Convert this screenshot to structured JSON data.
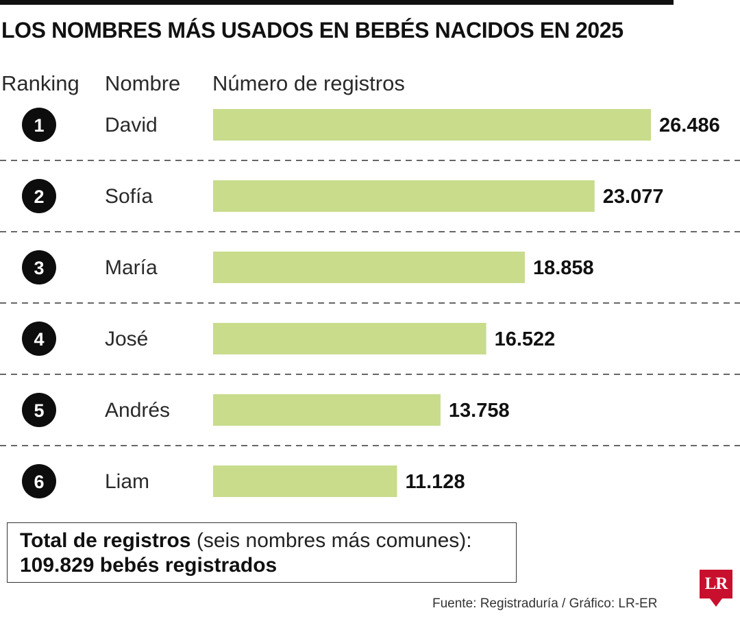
{
  "title": "LOS NOMBRES MÁS USADOS EN BEBÉS NACIDOS EN 2025",
  "columns": {
    "ranking": "Ranking",
    "nombre": "Nombre",
    "registros": "Número de registros"
  },
  "chart_data": {
    "type": "bar",
    "orientation": "horizontal",
    "categories": [
      "David",
      "Sofía",
      "María",
      "José",
      "Andrés",
      "Liam"
    ],
    "ranks": [
      "1",
      "2",
      "3",
      "4",
      "5",
      "6"
    ],
    "values": [
      26486,
      23077,
      18858,
      16522,
      13758,
      11128
    ],
    "value_labels": [
      "26.486",
      "23.077",
      "18.858",
      "16.522",
      "13.758",
      "11.128"
    ],
    "bar_color": "#c8dc8c",
    "grid": false
  },
  "total": {
    "label": "Total de registros",
    "note": " (seis nombres más comunes):",
    "value": "109.829 bebés registrados"
  },
  "source": "Fuente: Registraduría / Gráfico: LR-ER",
  "logo": "LR",
  "colors": {
    "bar": "#c8dc8c",
    "logo": "#c8102e",
    "text": "#111111"
  }
}
